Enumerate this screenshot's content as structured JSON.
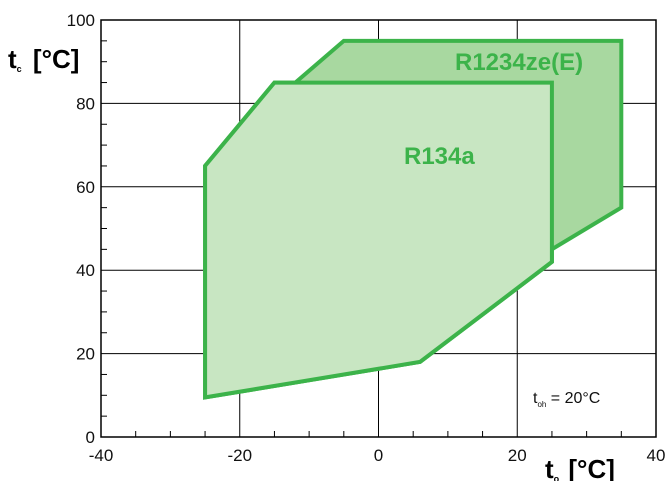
{
  "chart_data": {
    "type": "area",
    "title": "",
    "xlabel": {
      "main": "t",
      "sub": "o",
      "unit": " [°C]"
    },
    "ylabel": {
      "main": "t",
      "sub": "c",
      "unit": " [°C]"
    },
    "xlim": [
      -40,
      40
    ],
    "ylim": [
      0,
      100
    ],
    "x_major_ticks": [
      -40,
      -20,
      0,
      20,
      40
    ],
    "y_major_ticks": [
      0,
      20,
      40,
      60,
      80,
      100
    ],
    "x_tick_labels": [
      "-40",
      "-20",
      "0",
      "20",
      "40"
    ],
    "y_tick_labels": [
      "0",
      "20",
      "40",
      "60",
      "80",
      "100"
    ],
    "grid": true,
    "series": [
      {
        "name": "R1234ze(E)",
        "fill": "#a8d8a0",
        "stroke": "#3cb34a",
        "points": [
          [
            -12,
            85
          ],
          [
            -5,
            95
          ],
          [
            35,
            95
          ],
          [
            35,
            55
          ],
          [
            25,
            45
          ],
          [
            25,
            42
          ],
          [
            6,
            18
          ],
          [
            -25,
            9.5
          ],
          [
            -25,
            65
          ],
          [
            -15,
            85
          ]
        ]
      },
      {
        "name": "R134a",
        "fill": "#c8e6c2",
        "stroke": "#3cb34a",
        "points": [
          [
            -25,
            65
          ],
          [
            -15,
            85
          ],
          [
            25,
            85
          ],
          [
            25,
            42
          ],
          [
            6,
            18
          ],
          [
            -25,
            9.5
          ]
        ]
      }
    ],
    "annotation": {
      "main": "t",
      "sub": "oh",
      "text": " = 20°C"
    }
  },
  "colors": {
    "label": "#3cb34a",
    "grid": "#000000"
  }
}
